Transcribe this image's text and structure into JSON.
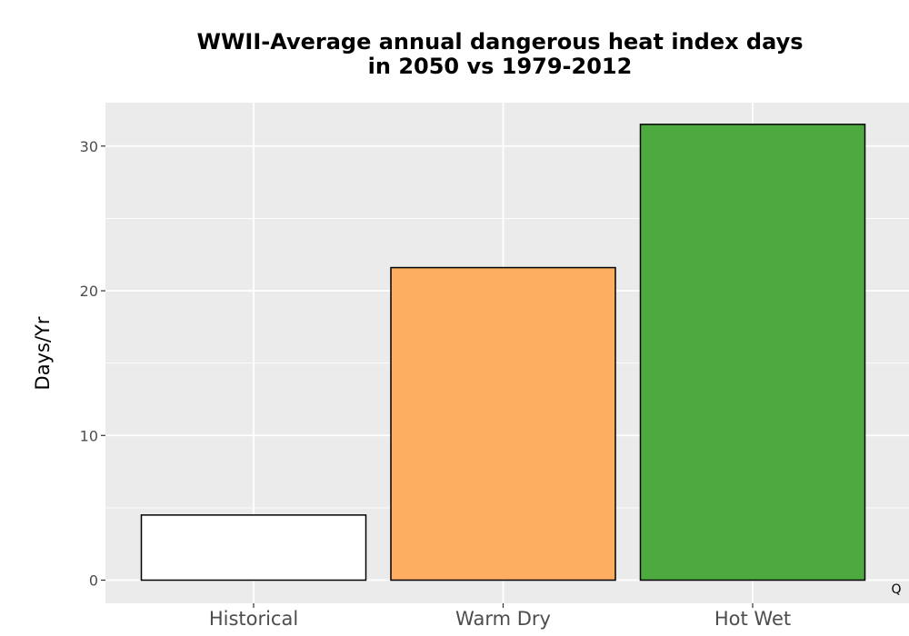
{
  "chart_data": {
    "type": "bar",
    "title": "WWII-Average annual dangerous heat index days",
    "subtitle": "in 2050 vs 1979-2012",
    "categories": [
      "Historical",
      "Warm Dry",
      "Hot Wet"
    ],
    "values": [
      4.5,
      21.6,
      31.5
    ],
    "bar_colors": [
      "#ffffff",
      "#fdae61",
      "#4daa3f"
    ],
    "bar_outline": "#000000",
    "xlabel": "",
    "ylabel": "Days/Yr",
    "ylim": [
      -1.6,
      33.0
    ],
    "yticks": [
      0,
      10,
      20,
      30
    ],
    "grid": true,
    "panel_background": "#ebebeb",
    "legend": "none"
  },
  "corner_label": "Q"
}
